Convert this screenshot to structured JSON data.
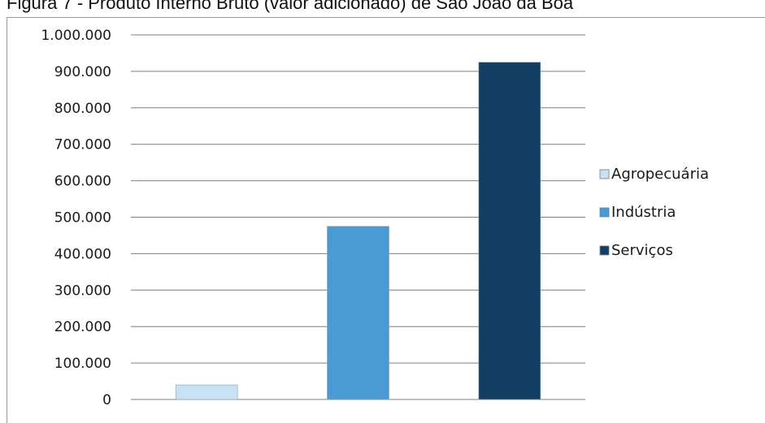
{
  "caption": "Figura 7 - Produto Interno Bruto (valor adicionado) de São João da Boa",
  "chart_data": {
    "type": "bar",
    "title": "",
    "xlabel": "",
    "ylabel": "",
    "ylim": [
      0,
      1000000
    ],
    "yticks": [
      0,
      100000,
      200000,
      300000,
      400000,
      500000,
      600000,
      700000,
      800000,
      900000,
      1000000
    ],
    "ytick_labels": [
      "0",
      "100.000",
      "200.000",
      "300.000",
      "400.000",
      "500.000",
      "600.000",
      "700.000",
      "800.000",
      "900.000",
      "1.000.000"
    ],
    "grid": "horizontal",
    "legend_position": "right",
    "categories": [
      "Agropecuária",
      "Indústria",
      "Serviços"
    ],
    "values": [
      40000,
      475000,
      925000
    ],
    "colors": [
      "#c6e2f3",
      "#4a9bd4",
      "#123f63"
    ]
  }
}
